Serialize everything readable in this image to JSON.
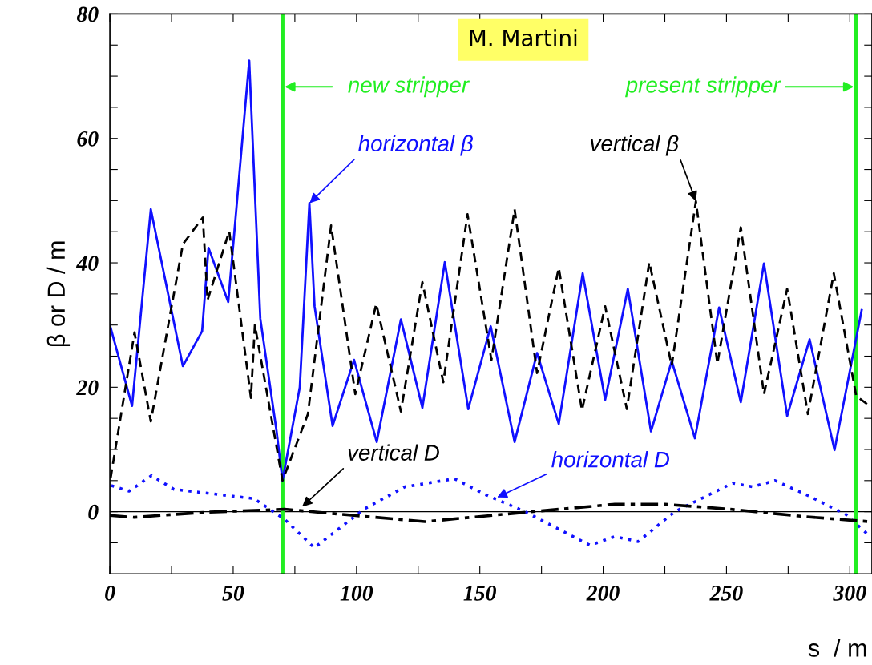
{
  "chart_data": {
    "type": "line",
    "xlabel": "s  / m",
    "ylabel": "β or D / m",
    "xlim": [
      0,
      309
    ],
    "ylim": [
      -10,
      80
    ],
    "xticks": [
      0,
      {
        "value": 25,
        "label": null
      },
      50,
      {
        "value": 75,
        "label": null
      },
      100,
      {
        "value": 125,
        "label": null
      },
      150,
      {
        "value": 175,
        "label": null
      },
      200,
      {
        "value": 225,
        "label": null
      },
      250,
      {
        "value": 275,
        "label": null
      },
      300
    ],
    "yticks": [
      {
        "value": -5,
        "label": null
      },
      0,
      {
        "value": 5,
        "label": null
      },
      {
        "value": 10,
        "label": null
      },
      {
        "value": 15,
        "label": null
      },
      20,
      {
        "value": 25,
        "label": null
      },
      {
        "value": 30,
        "label": null
      },
      {
        "value": 35,
        "label": null
      },
      40,
      {
        "value": 45,
        "label": null
      },
      {
        "value": 50,
        "label": null
      },
      {
        "value": 55,
        "label": null
      },
      60,
      {
        "value": 65,
        "label": null
      },
      {
        "value": 70,
        "label": null
      },
      {
        "value": 75,
        "label": null
      },
      80
    ],
    "grid": false,
    "marker": "none",
    "series": [
      {
        "color": "#1010ff",
        "line_style": "solid",
        "x": [
          0,
          9,
          16.6,
          29.6,
          37.4,
          40,
          48,
          56.5,
          61,
          67.6,
          70,
          77,
          80.9,
          83,
          90.3,
          99,
          108.2,
          118,
          126.7,
          135.8,
          145.3,
          154.4,
          164.1,
          173.2,
          182,
          191.7,
          200.8,
          210,
          219.4,
          227.8,
          237.2,
          247,
          255.8,
          265.2,
          274.6,
          283.7,
          293.8,
          304.8
        ],
        "values": [
          30,
          17,
          48.6,
          23.4,
          29,
          42.4,
          33.7,
          72.5,
          31,
          12.9,
          5,
          20,
          49.6,
          33,
          13.8,
          24.4,
          11.2,
          30.9,
          16.7,
          40.1,
          16.5,
          29.8,
          11.2,
          25.5,
          14.1,
          38.3,
          18,
          35.8,
          12.9,
          24.2,
          11.8,
          32.8,
          17.6,
          39.9,
          15.4,
          27.7,
          9.9,
          32.4
        ]
      },
      {
        "color": "#000000",
        "line_style": "dashed",
        "x": [
          0.3,
          10,
          16.6,
          29.6,
          37.7,
          39.6,
          48.4,
          57.2,
          58.8,
          70,
          80.3,
          89.7,
          99.5,
          108,
          118,
          126.7,
          135.2,
          145,
          154.7,
          164.1,
          173.2,
          182,
          191.4,
          200.8,
          209.6,
          218.7,
          227.8,
          237.6,
          246.3,
          255.8,
          265.2,
          274.6,
          283,
          293.5,
          302.6,
          308
        ],
        "values": [
          5.4,
          28.8,
          14.5,
          43,
          47.3,
          34,
          45.1,
          18.3,
          30,
          5,
          15.7,
          46,
          18.9,
          33.4,
          16.1,
          36.9,
          20.8,
          47.8,
          24.4,
          48.6,
          22.3,
          39.2,
          16.3,
          33,
          16.5,
          40.1,
          23.5,
          49.9,
          23.8,
          45.7,
          18.9,
          35.8,
          15.7,
          38.3,
          18.6,
          17
        ]
      },
      {
        "color": "#1010ff",
        "line_style": "dotted",
        "x": [
          0.6,
          7.8,
          16.9,
          26,
          58.5,
          70.8,
          82.9,
          103,
          119.6,
          139.7,
          152,
          168.3,
          194.7,
          204.7,
          214.2,
          229,
          252.5,
          260.6,
          269.7,
          282,
          298.3,
          308
        ],
        "values": [
          4.2,
          3.3,
          5.8,
          3.6,
          2.1,
          -1.2,
          -5.8,
          0.4,
          4,
          5.3,
          2.8,
          0,
          -5.4,
          -4,
          -4.8,
          0,
          4.6,
          4,
          5,
          2.8,
          -0.4,
          -3.9
        ]
      },
      {
        "color": "#000000",
        "line_style": "dashdot",
        "x": [
          0,
          9.8,
          38.3,
          70.8,
          99,
          127.7,
          160,
          204.7,
          225,
          251.5,
          282,
          308
        ],
        "values": [
          -0.6,
          -0.9,
          -0.1,
          0.4,
          -0.6,
          -1.6,
          -0.4,
          1.2,
          1.2,
          0.4,
          -0.8,
          -1.6
        ]
      }
    ],
    "ref_lines": [
      {
        "axis": "y",
        "value": 0,
        "color": "#000000",
        "line_style": "solid"
      },
      {
        "axis": "x",
        "value": 70,
        "label": "new stripper",
        "color": "#22ee22",
        "line_style": "solid"
      },
      {
        "axis": "x",
        "value": 302.5,
        "label": "present stripper",
        "color": "#22ee22",
        "line_style": "solid"
      }
    ],
    "annotations": [
      "M. Martini",
      {
        "text": "horizontal β",
        "x": 81,
        "y": 49.6
      },
      {
        "text": "vertical β",
        "x": 237.6,
        "y": 49.9
      },
      {
        "text": "vertical D",
        "x": 78,
        "y": 0.8
      },
      {
        "text": "horizontal D",
        "x": 157,
        "y": 2.3
      }
    ]
  }
}
